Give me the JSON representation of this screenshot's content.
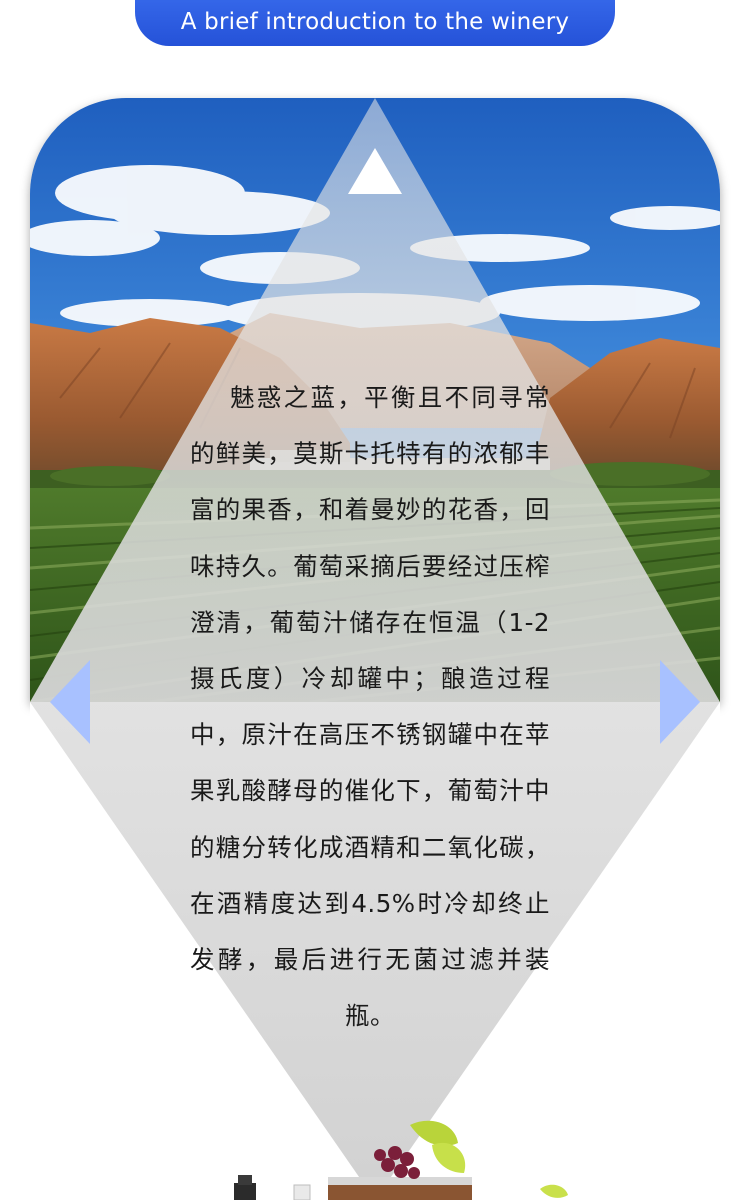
{
  "header": {
    "title": "A brief introduction to the winery"
  },
  "intro": {
    "text": "魅惑之蓝，平衡且不同寻常的鲜美，莫斯卡托特有的浓郁丰富的果香，和着曼妙的花香，回味持久。葡萄采摘后要经过压榨澄清，葡萄汁储存在恒温（1-2摄氏度）冷却罐中；酿造过程中，原汁在高压不锈钢罐中在苹果乳酸酵母的催化下，葡萄汁中的糖分转化成酒精和二氧化碳，在酒精度达到4.5%时冷却终止发酵，最后进行无菌过滤并装瓶。"
  },
  "icons": {
    "up": "triangle-up-icon",
    "left": "triangle-left-icon",
    "right": "triangle-right-icon"
  },
  "colors": {
    "header_blue": "#2f5ee6",
    "arrow_light_blue": "#a8c1ff",
    "overlay_gray": "#dcdcdc",
    "text": "#1a1a1a"
  }
}
